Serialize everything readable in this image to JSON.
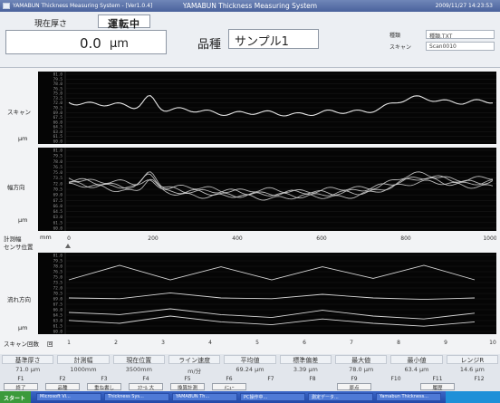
{
  "window": {
    "title_left": "YAMABUN Thickness Measuring System - [Ver1.0.4]",
    "title_center": "YAMABUN Thickness Measuring System",
    "datetime": "2009/11/27 14:23:53"
  },
  "header": {
    "current_label": "現在厚さ",
    "status": "運転中",
    "current_value": "0.0",
    "current_unit": "μm",
    "product_label": "品種",
    "product_name": "サンプル1",
    "info": [
      {
        "label": "種類",
        "value": "種類.TXT"
      },
      {
        "label": "スキャン",
        "value": "Scan0010"
      }
    ]
  },
  "panels": {
    "scan": {
      "label": "スキャン",
      "unit": "μm",
      "ticks": [
        "81.0",
        "79.5",
        "78.0",
        "76.5",
        "75.0",
        "73.5",
        "72.0",
        "70.5",
        "69.0",
        "67.5",
        "66.0",
        "64.5",
        "63.0",
        "61.5",
        "60.0"
      ]
    },
    "width": {
      "label": "幅方向",
      "unit": "μm",
      "ticks": [
        "81.0",
        "79.5",
        "78.0",
        "76.5",
        "75.0",
        "73.5",
        "72.0",
        "70.5",
        "69.0",
        "67.5",
        "66.0",
        "64.5",
        "63.0",
        "61.5",
        "60.0"
      ]
    },
    "flow": {
      "label": "流れ方向",
      "unit": "μm",
      "ticks": [
        "81.0",
        "79.5",
        "78.0",
        "76.5",
        "75.0",
        "73.5",
        "72.0",
        "70.5",
        "69.0",
        "67.5",
        "66.0",
        "64.5",
        "63.0",
        "61.5",
        "60.0"
      ]
    }
  },
  "axis": {
    "measure_width_label": "計測幅",
    "measure_width_unit": "mm",
    "sensor_pos_label": "センサ位置",
    "x_ticks": [
      "0",
      "200",
      "400",
      "600",
      "800",
      "1000"
    ],
    "scan_count_label": "スキャン回数",
    "scan_count_unit": "回",
    "scan_ticks": [
      "1",
      "2",
      "3",
      "4",
      "5",
      "6",
      "7",
      "8",
      "9",
      "10"
    ]
  },
  "stats": [
    {
      "label": "基準厚さ",
      "value": "71.0 μm"
    },
    {
      "label": "計測幅",
      "value": "1000mm"
    },
    {
      "label": "現在位置",
      "value": "3500mm"
    },
    {
      "label": "ライン速度",
      "value": "m/分"
    },
    {
      "label": "平均値",
      "value": "69.24 μm"
    },
    {
      "label": "標準偏差",
      "value": "3.39 μm"
    },
    {
      "label": "最大値",
      "value": "78.0 μm"
    },
    {
      "label": "最小値",
      "value": "63.4 μm"
    },
    {
      "label": "レンジR",
      "value": "14.6 μm"
    }
  ],
  "fkeys": [
    {
      "key": "F1",
      "label": "終了"
    },
    {
      "key": "F2",
      "label": "品種"
    },
    {
      "key": "F3",
      "label": "重ね書し"
    },
    {
      "key": "F4",
      "label": "ｽｹｰﾙ 大"
    },
    {
      "key": "F5",
      "label": "換算計測"
    },
    {
      "key": "F6",
      "label": "ﾒﾆｭｰ"
    },
    {
      "key": "F7",
      "label": ""
    },
    {
      "key": "F8",
      "label": ""
    },
    {
      "key": "F9",
      "label": "原点"
    },
    {
      "key": "F10",
      "label": ""
    },
    {
      "key": "F11",
      "label": "履歴"
    },
    {
      "key": "F12",
      "label": ""
    }
  ],
  "taskbar": {
    "start": "スタート",
    "items": [
      "Microsoft Vi...",
      "Thickness Sys...",
      "YAMABUN Th...",
      "PC操作中...",
      "測定データ...",
      "Yamabun Thickness..."
    ]
  },
  "colors": {
    "plot_bg": "#050505",
    "trace": "#e6e6e6",
    "grid": "#333333"
  }
}
